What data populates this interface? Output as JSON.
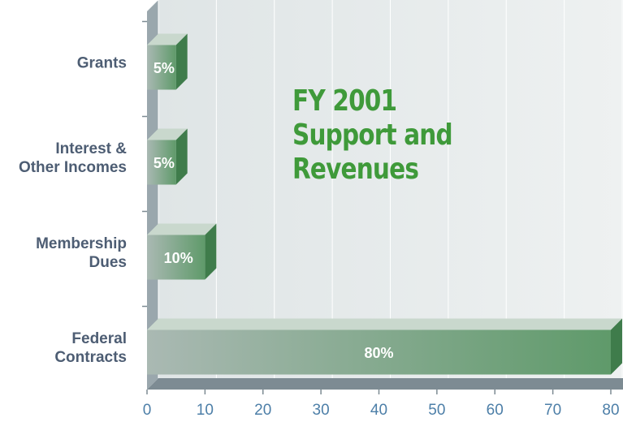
{
  "chart_data": {
    "type": "bar",
    "orientation": "horizontal",
    "title": "FY 2001\nSupport and\nRevenues",
    "categories": [
      "Grants",
      "Interest &\nOther Incomes",
      "Membership\nDues",
      "Federal\nContracts"
    ],
    "values": [
      5,
      5,
      10,
      80
    ],
    "value_labels": [
      "5%",
      "5%",
      "10%",
      "80%"
    ],
    "color": "#7fa88a",
    "xlim": [
      0,
      80
    ],
    "xticks": [
      0,
      10,
      20,
      30,
      40,
      50,
      60,
      70,
      80
    ],
    "grid": true
  }
}
